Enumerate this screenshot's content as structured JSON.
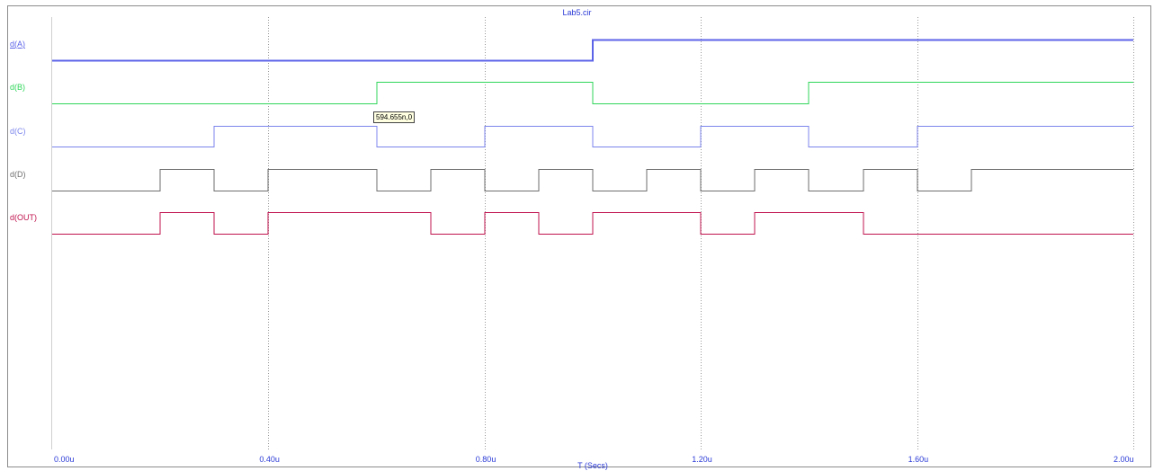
{
  "window": {
    "title": "Lab5.cir"
  },
  "cursor_tooltip": "594.655n,0",
  "colors": {
    "title": "#2a3ad6",
    "grid": "#9a9a9a",
    "frame": "#8c8c8c",
    "tooltip_bg": "#ffffe1"
  },
  "chart_data": {
    "type": "line",
    "title": "Lab5.cir",
    "xlabel": "T (Secs)",
    "ylabel": "",
    "x_unit": "us",
    "xlim": [
      0,
      2.0
    ],
    "x_tick_values": [
      0,
      0.4,
      0.8,
      1.2,
      1.6,
      2.0
    ],
    "x_ticks": [
      "0.00u",
      "0.40u",
      "0.80u",
      "1.20u",
      "1.60u",
      "2.00u"
    ],
    "grid": true,
    "series": [
      {
        "name": "d(A)",
        "color": "#5c63e8",
        "width": 1.6,
        "x": [
          0,
          1.0,
          1.0,
          2.0
        ],
        "y": [
          0,
          0,
          1,
          1
        ]
      },
      {
        "name": "d(B)",
        "color": "#2fd65a",
        "width": 1.2,
        "x": [
          0,
          0.6,
          0.6,
          1.0,
          1.0,
          1.4,
          1.4,
          2.0
        ],
        "y": [
          0,
          0,
          1,
          1,
          0,
          0,
          1,
          1
        ]
      },
      {
        "name": "d(C)",
        "color": "#7c86ec",
        "width": 1.0,
        "x": [
          0,
          0.3,
          0.3,
          0.6,
          0.6,
          0.8,
          0.8,
          1.0,
          1.0,
          1.2,
          1.2,
          1.4,
          1.4,
          1.6,
          1.6,
          2.0
        ],
        "y": [
          0,
          0,
          1,
          1,
          0,
          0,
          1,
          1,
          0,
          0,
          1,
          1,
          0,
          0,
          1,
          1
        ]
      },
      {
        "name": "d(D)",
        "color": "#6e6e6e",
        "width": 1.0,
        "x": [
          0,
          0.2,
          0.2,
          0.3,
          0.3,
          0.4,
          0.4,
          0.6,
          0.6,
          0.7,
          0.7,
          0.8,
          0.8,
          0.9,
          0.9,
          1.0,
          1.0,
          1.1,
          1.1,
          1.2,
          1.2,
          1.3,
          1.3,
          1.4,
          1.4,
          1.5,
          1.5,
          1.6,
          1.6,
          1.7,
          1.7,
          2.0
        ],
        "y": [
          0,
          0,
          1,
          1,
          0,
          0,
          1,
          1,
          0,
          0,
          1,
          1,
          0,
          0,
          1,
          1,
          0,
          0,
          1,
          1,
          0,
          0,
          1,
          1,
          0,
          0,
          1,
          1,
          0,
          0,
          1,
          1
        ]
      },
      {
        "name": "d(OUT)",
        "color": "#c0144f",
        "width": 1.2,
        "x": [
          0,
          0.2,
          0.2,
          0.3,
          0.3,
          0.4,
          0.4,
          0.7,
          0.7,
          0.8,
          0.8,
          0.9,
          0.9,
          1.0,
          1.0,
          1.2,
          1.2,
          1.3,
          1.3,
          1.5,
          1.5,
          2.0
        ],
        "y": [
          0,
          0,
          1,
          1,
          0,
          0,
          1,
          1,
          0,
          0,
          1,
          1,
          0,
          0,
          1,
          1,
          0,
          0,
          1,
          1,
          0,
          0
        ]
      }
    ]
  }
}
